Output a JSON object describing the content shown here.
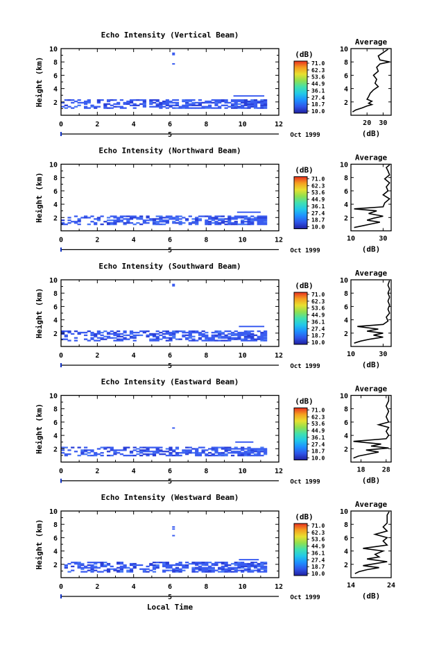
{
  "figure": {
    "bottom_xlabel": "Local Time",
    "date_label": "Oct 1999",
    "day_label": "5",
    "x_ticks": [
      0,
      2,
      4,
      6,
      8,
      10,
      12
    ],
    "colorbar": {
      "unit": "(dB)",
      "levels": [
        "71.0",
        "62.3",
        "53.6",
        "44.9",
        "36.1",
        "27.4",
        "18.7",
        "10.0"
      ],
      "colors": [
        "#2020a0",
        "#2e55e8",
        "#1e90ff",
        "#22c8e8",
        "#40e0b0",
        "#90e050",
        "#e8e030",
        "#f5a020",
        "#e83020"
      ]
    },
    "echo_color": "#3a5cf0"
  },
  "chart_data": [
    {
      "type": "heatmap",
      "title": "Echo Intensity (Vertical Beam)",
      "ylabel": "Height (km)",
      "xlim": [
        0,
        12
      ],
      "ylim": [
        0,
        10
      ],
      "y_ticks": [
        2,
        4,
        6,
        8,
        10
      ],
      "layer": {
        "x_end": 11.2,
        "y_low": 1.0,
        "y_high": 2.4,
        "upper": [
          [
            9.5,
            11.2,
            2.8,
            3.0
          ]
        ]
      },
      "spots": [
        [
          6.2,
          9.2
        ],
        [
          6.2,
          7.6
        ]
      ],
      "profile": {
        "title": "Average",
        "xlabel": "(dB)",
        "xlim": [
          10,
          35
        ],
        "x_ticks": [
          20,
          30
        ],
        "x_tick_labels": [
          "20",
          "30"
        ],
        "y_ticks": [
          2,
          4,
          6,
          8,
          10
        ],
        "points": [
          [
            11,
            0.5
          ],
          [
            13,
            0.8
          ],
          [
            17,
            1.1
          ],
          [
            20,
            1.4
          ],
          [
            23,
            1.6
          ],
          [
            21,
            1.8
          ],
          [
            23,
            2.1
          ],
          [
            20,
            2.4
          ],
          [
            21,
            2.8
          ],
          [
            22,
            3.3
          ],
          [
            24,
            3.8
          ],
          [
            27,
            4.3
          ],
          [
            25,
            4.8
          ],
          [
            26,
            5.4
          ],
          [
            24,
            6.0
          ],
          [
            27,
            6.6
          ],
          [
            26,
            7.2
          ],
          [
            28,
            7.7
          ],
          [
            34,
            8.0
          ],
          [
            28,
            8.3
          ],
          [
            27,
            8.9
          ],
          [
            30,
            9.4
          ],
          [
            33,
            9.9
          ]
        ]
      }
    },
    {
      "type": "heatmap",
      "title": "Echo Intensity (Northward Beam)",
      "ylabel": "Height (km)",
      "xlim": [
        0,
        12
      ],
      "ylim": [
        0,
        10
      ],
      "y_ticks": [
        2,
        4,
        6,
        8,
        10
      ],
      "layer": {
        "x_end": 11.3,
        "y_low": 0.9,
        "y_high": 2.2,
        "upper": [
          [
            9.7,
            11.0,
            2.7,
            2.9
          ]
        ]
      },
      "spots": [],
      "profile": {
        "title": "Average",
        "xlabel": "(dB)",
        "xlim": [
          10,
          35
        ],
        "x_ticks": [
          10,
          30
        ],
        "x_tick_labels": [
          "10",
          "30"
        ],
        "y_ticks": [
          2,
          4,
          6,
          8,
          10
        ],
        "points": [
          [
            12,
            0.5
          ],
          [
            18,
            0.8
          ],
          [
            22,
            1.0
          ],
          [
            28,
            1.3
          ],
          [
            20,
            1.6
          ],
          [
            24,
            1.9
          ],
          [
            30,
            2.2
          ],
          [
            21,
            2.6
          ],
          [
            26,
            3.0
          ],
          [
            12,
            3.3
          ],
          [
            30,
            3.6
          ],
          [
            31,
            4.2
          ],
          [
            34,
            4.8
          ],
          [
            30,
            5.4
          ],
          [
            33,
            6.0
          ],
          [
            32,
            6.6
          ],
          [
            34,
            7.2
          ],
          [
            31,
            7.8
          ],
          [
            34,
            8.4
          ],
          [
            33,
            9.0
          ],
          [
            32,
            9.5
          ],
          [
            34,
            9.9
          ]
        ]
      }
    },
    {
      "type": "heatmap",
      "title": "Echo Intensity (Southward Beam)",
      "ylabel": "Height (km)",
      "xlim": [
        0,
        12
      ],
      "ylim": [
        0,
        10
      ],
      "y_ticks": [
        2,
        4,
        6,
        8,
        10
      ],
      "layer": {
        "x_end": 11.3,
        "y_low": 0.8,
        "y_high": 2.3,
        "upper": [
          [
            9.8,
            11.2,
            2.9,
            3.1
          ]
        ]
      },
      "spots": [
        [
          6.2,
          9.2
        ]
      ],
      "profile": {
        "title": "Average",
        "xlabel": "(dB)",
        "xlim": [
          10,
          35
        ],
        "x_ticks": [
          10,
          30
        ],
        "x_tick_labels": [
          "10",
          "30"
        ],
        "y_ticks": [
          2,
          4,
          6,
          8,
          10
        ],
        "points": [
          [
            12,
            0.5
          ],
          [
            16,
            0.8
          ],
          [
            22,
            1.1
          ],
          [
            30,
            1.4
          ],
          [
            24,
            1.7
          ],
          [
            30,
            2.0
          ],
          [
            20,
            2.3
          ],
          [
            27,
            2.6
          ],
          [
            14,
            3.0
          ],
          [
            30,
            3.3
          ],
          [
            33,
            3.8
          ],
          [
            32,
            4.4
          ],
          [
            34,
            5.0
          ],
          [
            33,
            5.6
          ],
          [
            34,
            6.2
          ],
          [
            33,
            6.8
          ],
          [
            34,
            7.4
          ],
          [
            33,
            8.0
          ],
          [
            34,
            8.6
          ],
          [
            33,
            9.2
          ],
          [
            34,
            9.9
          ]
        ]
      }
    },
    {
      "type": "heatmap",
      "title": "Echo Intensity (Eastward Beam)",
      "ylabel": "Height (km)",
      "xlim": [
        0,
        12
      ],
      "ylim": [
        0,
        10
      ],
      "y_ticks": [
        2,
        4,
        6,
        8,
        10
      ],
      "layer": {
        "x_end": 11.3,
        "y_low": 0.9,
        "y_high": 2.3,
        "upper": [
          [
            9.6,
            10.6,
            2.9,
            3.1
          ]
        ]
      },
      "spots": [
        [
          6.2,
          5.0
        ]
      ],
      "profile": {
        "title": "Average",
        "xlabel": "(dB)",
        "xlim": [
          14,
          30
        ],
        "x_ticks": [
          18,
          28
        ],
        "x_tick_labels": [
          "18",
          "28"
        ],
        "y_ticks": [
          2,
          4,
          6,
          8,
          10
        ],
        "points": [
          [
            15,
            0.6
          ],
          [
            17,
            0.9
          ],
          [
            21,
            1.2
          ],
          [
            25,
            1.5
          ],
          [
            20,
            1.8
          ],
          [
            29,
            2.1
          ],
          [
            22,
            2.4
          ],
          [
            26,
            2.7
          ],
          [
            15,
            3.1
          ],
          [
            28,
            3.5
          ],
          [
            29,
            4.0
          ],
          [
            28,
            4.6
          ],
          [
            29,
            5.2
          ],
          [
            25,
            5.6
          ],
          [
            29,
            6.0
          ],
          [
            28,
            6.8
          ],
          [
            29,
            7.6
          ],
          [
            28,
            8.4
          ],
          [
            29,
            9.2
          ],
          [
            29,
            9.9
          ]
        ]
      }
    },
    {
      "type": "heatmap",
      "title": "Echo Intensity (Westward Beam)",
      "ylabel": "Height (km)",
      "xlim": [
        0,
        12
      ],
      "ylim": [
        0,
        10
      ],
      "y_ticks": [
        2,
        4,
        6,
        8,
        10
      ],
      "layer": {
        "x_end": 11.3,
        "y_low": 0.8,
        "y_high": 2.2,
        "upper": [
          [
            9.8,
            10.9,
            2.6,
            2.8
          ]
        ]
      },
      "spots": [
        [
          6.2,
          7.5
        ],
        [
          6.2,
          7.2
        ],
        [
          6.2,
          6.2
        ]
      ],
      "profile": {
        "title": "Average",
        "xlabel": "(dB)",
        "xlim": [
          14,
          24
        ],
        "x_ticks": [
          14,
          24
        ],
        "x_tick_labels": [
          "14",
          "24"
        ],
        "y_ticks": [
          2,
          4,
          6,
          8,
          10
        ],
        "points": [
          [
            15,
            0.6
          ],
          [
            16,
            0.9
          ],
          [
            18,
            1.2
          ],
          [
            21,
            1.5
          ],
          [
            17,
            1.8
          ],
          [
            20,
            2.1
          ],
          [
            23,
            2.4
          ],
          [
            18,
            2.8
          ],
          [
            21,
            3.1
          ],
          [
            20,
            3.5
          ],
          [
            22,
            4.0
          ],
          [
            17,
            4.4
          ],
          [
            23,
            4.9
          ],
          [
            22,
            5.5
          ],
          [
            23,
            6.0
          ],
          [
            20,
            6.5
          ],
          [
            23,
            7.0
          ],
          [
            22,
            7.6
          ],
          [
            23,
            8.2
          ],
          [
            23,
            8.8
          ],
          [
            23,
            9.4
          ],
          [
            23.5,
            9.9
          ]
        ]
      }
    }
  ]
}
